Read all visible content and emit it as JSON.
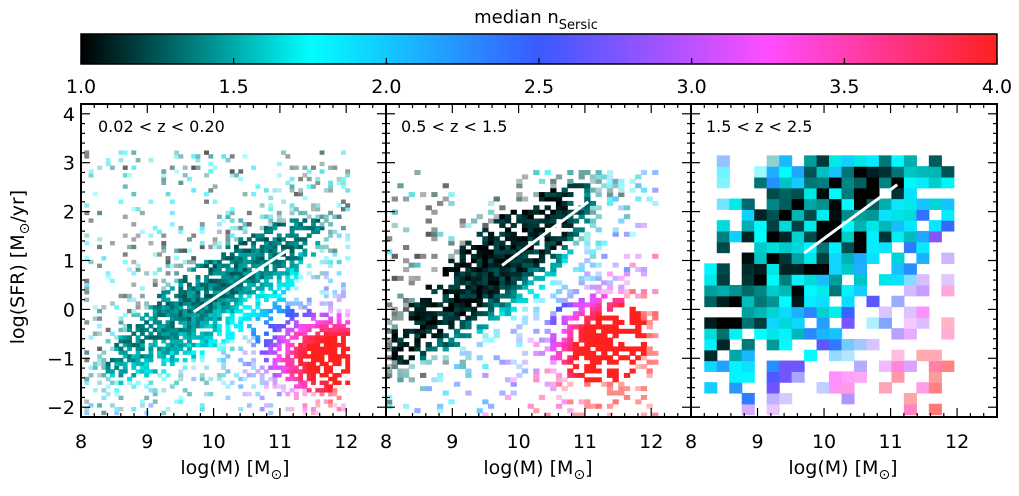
{
  "chart_data": {
    "type": "heatmap",
    "colorbar": {
      "title_main": "median n",
      "title_sub": "Sersic",
      "range": [
        1.0,
        4.0
      ],
      "ticks": [
        "1.0",
        "1.5",
        "2.0",
        "2.5",
        "3.0",
        "3.5",
        "4.0"
      ],
      "stops": [
        "#000000",
        "#00ffff",
        "#3a5aff",
        "#ff4dff",
        "#ff2020"
      ]
    },
    "ylabel_main": "log(SFR) [M",
    "ylabel_tail": "/yr]",
    "xlabel_main": "log(M) [M",
    "xlabel_tail": "]",
    "sun_symbol": "⊙",
    "xlim": [
      8.0,
      12.6
    ],
    "ylim": [
      -2.2,
      4.2
    ],
    "x_ticks": [
      "8",
      "9",
      "10",
      "11",
      "12"
    ],
    "y_ticks": [
      "4",
      "3",
      "2",
      "1",
      "0",
      "−1",
      "−2"
    ],
    "panels": [
      {
        "label": "0.02 < z < 0.20",
        "main_sequence_line": {
          "x": [
            9.7,
            11.1
          ],
          "y": [
            -0.05,
            1.2
          ]
        },
        "grid": {
          "x_range": [
            8.05,
            12.05
          ],
          "y_range": [
            -2.15,
            3.25
          ],
          "nx": 62,
          "ny": 70
        }
      },
      {
        "label": "0.5 < z < 1.5",
        "main_sequence_line": {
          "x": [
            9.75,
            11.05
          ],
          "y": [
            0.9,
            2.2
          ]
        },
        "grid": {
          "x_range": [
            8.0,
            12.1
          ],
          "y_range": [
            -2.2,
            2.85
          ],
          "nx": 48,
          "ny": 56
        }
      },
      {
        "label": "1.5 < z < 2.5",
        "main_sequence_line": {
          "x": [
            9.7,
            11.1
          ],
          "y": [
            1.15,
            2.55
          ]
        },
        "grid": {
          "x_range": [
            8.2,
            11.95
          ],
          "y_range": [
            -2.15,
            3.15
          ],
          "nx": 20,
          "ny": 24
        }
      }
    ]
  }
}
